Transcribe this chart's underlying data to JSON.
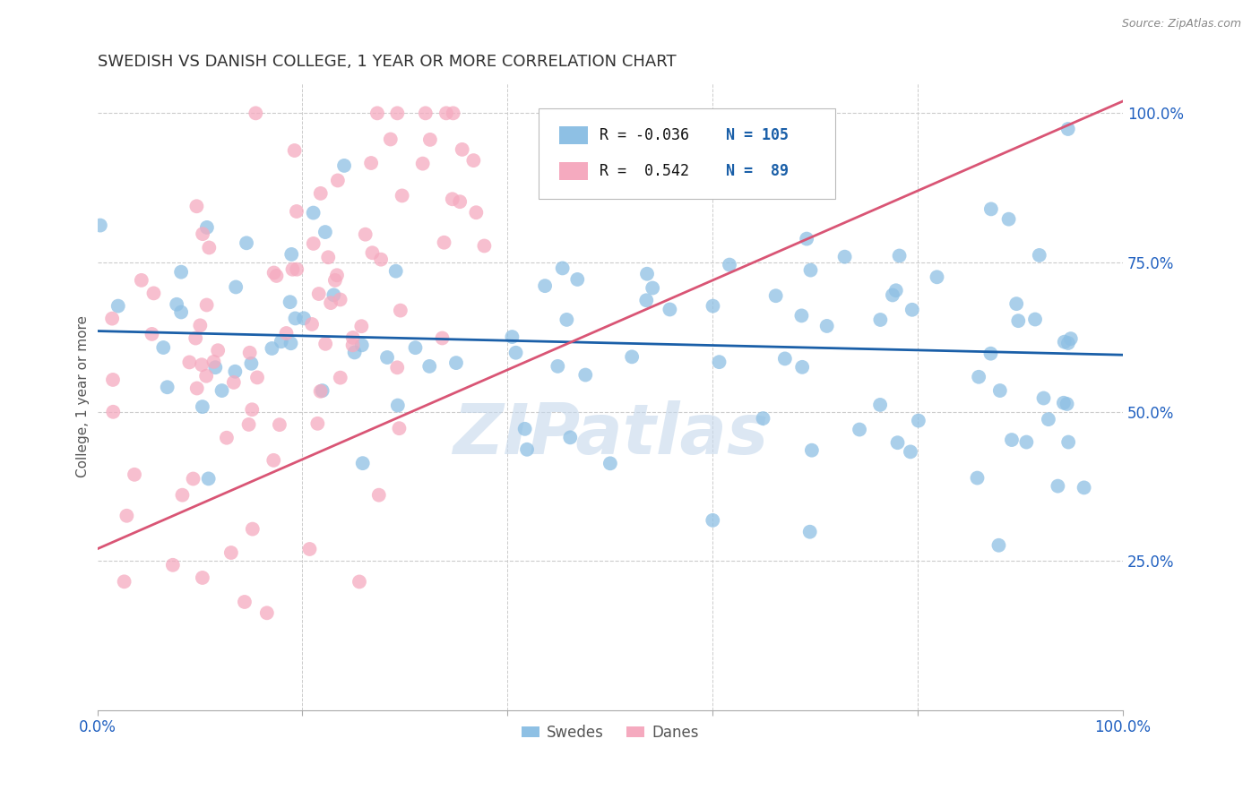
{
  "title": "SWEDISH VS DANISH COLLEGE, 1 YEAR OR MORE CORRELATION CHART",
  "source": "Source: ZipAtlas.com",
  "ylabel": "College, 1 year or more",
  "right_ytick_labels": [
    "100.0%",
    "75.0%",
    "50.0%",
    "25.0%"
  ],
  "right_ytick_positions": [
    1.0,
    0.75,
    0.5,
    0.25
  ],
  "watermark": "ZIPatlas",
  "blue_color": "#8ec0e4",
  "pink_color": "#f5aabf",
  "blue_line_color": "#1a5fa8",
  "pink_line_color": "#d95575",
  "blue_R": -0.036,
  "blue_N": 105,
  "pink_R": 0.542,
  "pink_N": 89,
  "blue_seed": 12,
  "pink_seed": 99,
  "background_color": "#ffffff",
  "grid_color": "#cccccc",
  "title_color": "#333333",
  "axis_label_color": "#2060c0",
  "watermark_color": "#c5d8ec",
  "watermark_alpha": 0.6,
  "legend_R_color": "#111111",
  "legend_N_color": "#1a5fa8"
}
